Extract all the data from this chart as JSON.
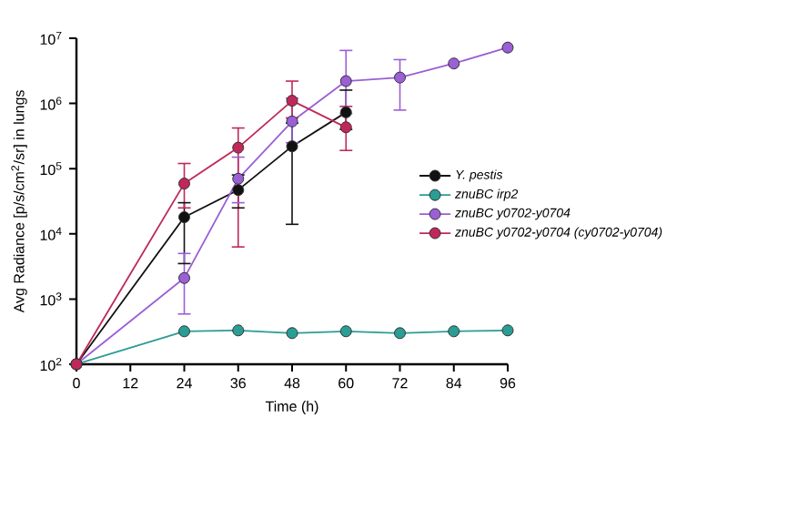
{
  "chart_data": {
    "type": "line",
    "xlabel": "Time (h)",
    "ylabel": "Avg Radiance [p/s/cm$^{2}$/sr] in lungs",
    "log": "y",
    "grid": false,
    "legend": "right",
    "marker": "circle",
    "line_style": "solid",
    "xlim": [
      0,
      96
    ],
    "xticks": [
      0,
      12,
      24,
      36,
      48,
      60,
      72,
      84,
      96
    ],
    "ylim": [
      100,
      10000000
    ],
    "yticks": [
      {
        "value": 100,
        "label": "10$^{2}$"
      },
      {
        "value": 1000,
        "label": "10$^{3}$"
      },
      {
        "value": 10000,
        "label": "10$^{4}$"
      },
      {
        "value": 100000,
        "label": "10$^{5}$"
      },
      {
        "value": 1000000,
        "label": "10$^{6}$"
      },
      {
        "value": 10000000,
        "label": "10$^{7}$"
      }
    ],
    "series": [
      {
        "name": "Y. pestis",
        "color": "#111111",
        "x": [
          0,
          24,
          36,
          48,
          60
        ],
        "values": [
          100,
          18000,
          47000,
          220000,
          730000
        ],
        "errors": [
          null,
          [
            3500,
            30000
          ],
          [
            25000,
            80000
          ],
          [
            14000,
            500000
          ],
          [
            400000,
            1600000
          ]
        ]
      },
      {
        "name": "znuBC irp2",
        "color": "#2a9d94",
        "x": [
          0,
          24,
          36,
          48,
          60,
          72,
          84,
          96
        ],
        "values": [
          100,
          320,
          330,
          300,
          320,
          300,
          320,
          330
        ]
      },
      {
        "name": "znuBC y0702-y0704",
        "color": "#9b5fd6",
        "x": [
          0,
          24,
          36,
          48,
          60,
          72,
          84,
          96
        ],
        "values": [
          100,
          2100,
          70000,
          530000,
          2200000,
          2500000,
          4100000,
          7200000
        ],
        "errors": [
          null,
          [
            590,
            5000
          ],
          [
            30000,
            150000
          ],
          [
            250000,
            1200000
          ],
          [
            700000,
            6500000
          ],
          [
            790000,
            4700000
          ],
          null,
          null
        ]
      },
      {
        "name": "znuBC y0702-y0704 (cy0702-y0704)",
        "color": "#c0285a",
        "x": [
          0,
          24,
          36,
          48,
          60
        ],
        "values": [
          100,
          59000,
          210000,
          1100000,
          430000
        ],
        "errors": [
          null,
          [
            25000,
            120000
          ],
          [
            6300,
            420000
          ],
          [
            600000,
            2200000
          ],
          [
            190000,
            900000
          ]
        ]
      }
    ]
  }
}
